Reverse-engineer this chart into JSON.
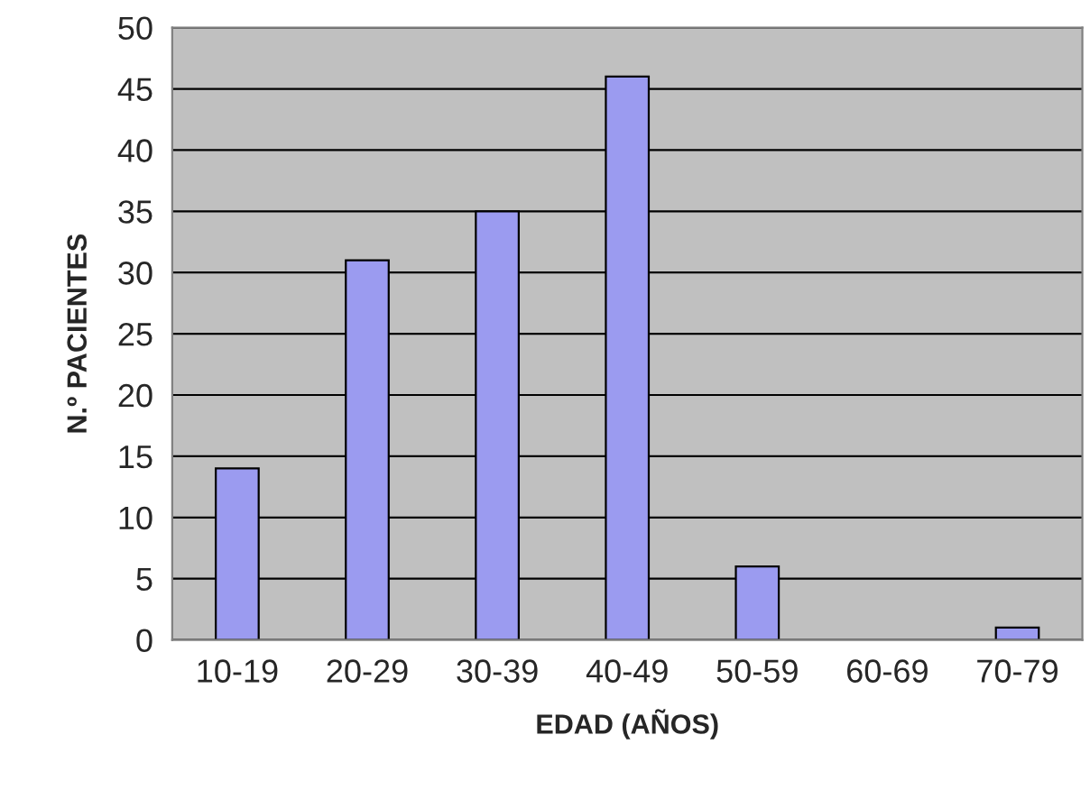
{
  "chart_data": {
    "type": "bar",
    "xlabel": "EDAD (AÑOS)",
    "ylabel": "N.º PACIENTES",
    "categories": [
      "10-19",
      "20-29",
      "30-39",
      "40-49",
      "50-59",
      "60-69",
      "70-79"
    ],
    "values": [
      14,
      31,
      35,
      46,
      6,
      0,
      1
    ],
    "color": "#9b9bf0",
    "ylim": [
      0,
      50
    ],
    "yticks": [
      0,
      5,
      10,
      15,
      20,
      25,
      30,
      35,
      40,
      45,
      50
    ],
    "grid": "y"
  }
}
